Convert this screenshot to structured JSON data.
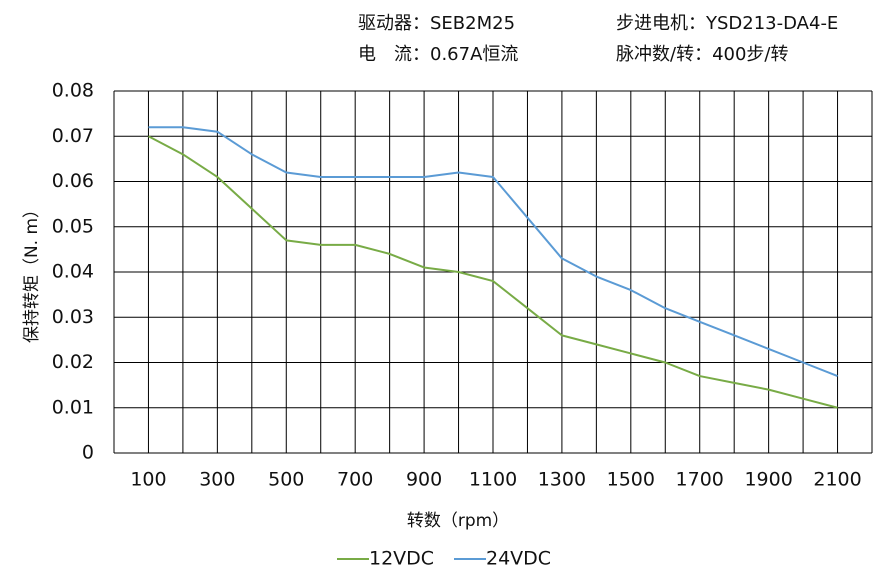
{
  "chart_data": {
    "type": "line",
    "info": [
      "驱动器：SEB2M25",
      "步进电机：YSD213-DA4-E",
      "电　流：0.67A恒流",
      "脉冲数/转：400步/转"
    ],
    "y_label": "保持转矩（N. m）",
    "x_label": "转数（rpm）",
    "x": [
      100,
      200,
      300,
      400,
      500,
      600,
      700,
      800,
      900,
      1000,
      1100,
      1200,
      1300,
      1400,
      1500,
      1600,
      1700,
      1800,
      1900,
      2000,
      2100
    ],
    "series": [
      {
        "name": "12VDC",
        "color": "#78ab46",
        "values": [
          0.07,
          0.066,
          0.061,
          0.054,
          0.047,
          0.046,
          0.046,
          0.044,
          0.041,
          0.04,
          0.038,
          0.032,
          0.026,
          0.024,
          0.022,
          0.02,
          0.017,
          0.0155,
          0.014,
          0.012,
          0.01
        ]
      },
      {
        "name": "24VDC",
        "color": "#5b9bd5",
        "values": [
          0.072,
          0.072,
          0.071,
          0.066,
          0.062,
          0.061,
          0.061,
          0.061,
          0.061,
          0.062,
          0.061,
          0.052,
          0.043,
          0.039,
          0.036,
          0.032,
          0.029,
          0.026,
          0.023,
          0.02,
          0.017
        ]
      }
    ],
    "xlim": [
      0,
      2200
    ],
    "xticks": [
      100,
      300,
      500,
      700,
      900,
      1100,
      1300,
      1500,
      1700,
      1900,
      2100
    ],
    "xgrid": [
      0,
      100,
      200,
      300,
      400,
      500,
      600,
      700,
      800,
      900,
      1000,
      1100,
      1200,
      1300,
      1400,
      1500,
      1600,
      1700,
      1800,
      1900,
      2000,
      2100,
      2200
    ],
    "ylim": [
      0,
      0.08
    ],
    "yticks": [
      0,
      0.01,
      0.02,
      0.03,
      0.04,
      0.05,
      0.06,
      0.07,
      0.08
    ],
    "grid": true
  }
}
